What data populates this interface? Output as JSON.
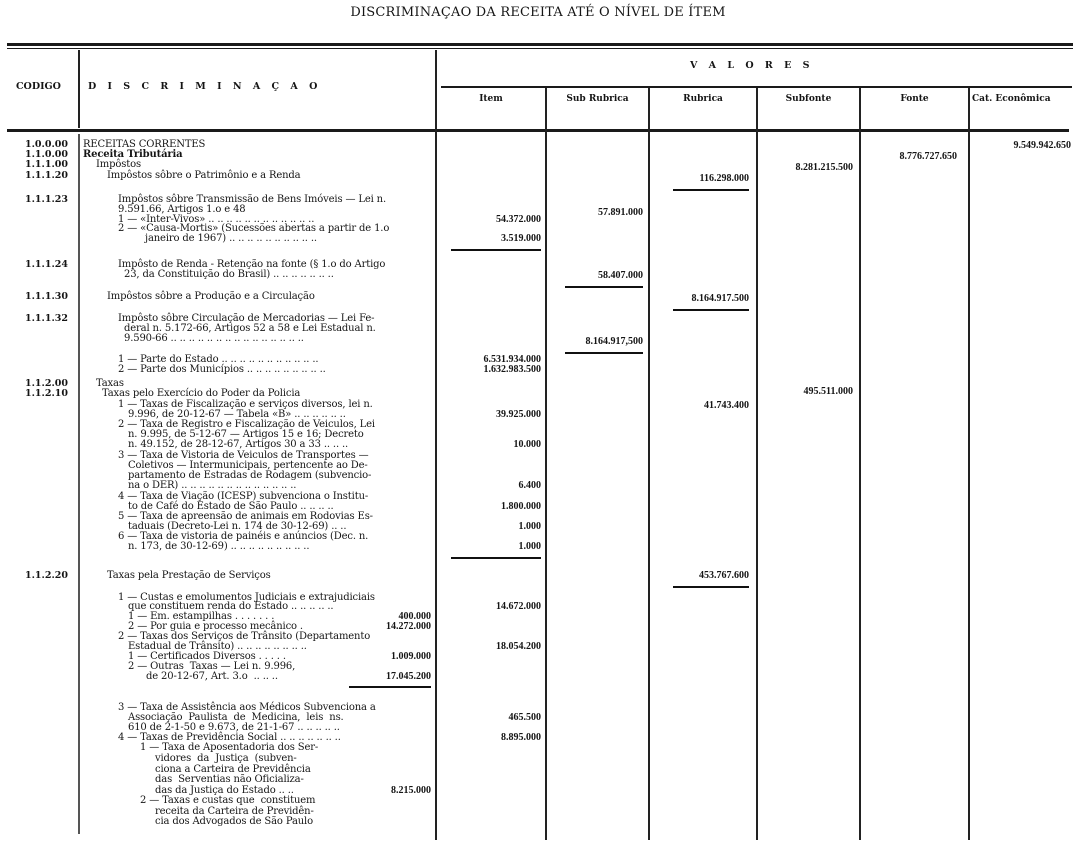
{
  "title": "DISCRIMINAÇAO DA RECEITA ATÉ O NÍVEL DE ÍTEM",
  "header": {
    "codigo": "CODIGO",
    "discriminacao": "D I S C R I M I N A Ç A O",
    "valores": "V A L O R E S",
    "columns": [
      "Item",
      "Sub Rubrica",
      "Rubrica",
      "Subfonte",
      "Fonte",
      "Cat. Econômica"
    ]
  },
  "lines": [
    {
      "code": "1.0.0.00",
      "text": "RECEITAS CORRENTES"
    },
    {
      "code": "1.1.0.00",
      "text": "Receita Tributária"
    },
    {
      "code": "1.1.1.00",
      "text": "Impôstos"
    },
    {
      "code": "1.1.1.20",
      "text": "Impôstos sôbre o Patrimônio e a Renda"
    },
    {
      "code": "1.1.1.23",
      "text": "Impôstos sôbre Transmissão de Bens Imóveis — Lei n."
    },
    {
      "text": "9.591.66, Artigos 1.o e 48"
    },
    {
      "text": "1 — «Inter-Vivos» .. .. .. .. .. .. .. .. .. .. .. .."
    },
    {
      "text": "2 — «Causa-Mortis» (Sucessões abertas a partir de 1.o"
    },
    {
      "text": "janeiro de 1967) .. .. .. .. .. .. .. .. .. .."
    },
    {
      "code": "1.1.1.24",
      "text": "Impôsto de Renda - Retenção na fonte (§ 1.o do Artigo"
    },
    {
      "text": "23, da Constituição do Brasil) .. .. .. .. .. .. .."
    },
    {
      "code": "1.1.1.30",
      "text": "Impôstos sôbre a Produção e a Circulação"
    },
    {
      "code": "1.1.1.32",
      "text": "Impôsto sôbre Circulação de Mercadorias — Lei Fe-"
    },
    {
      "text": "deral n. 5.172-66, Artigos 52 a 58 e Lei Estadual n."
    },
    {
      "text": "9.590-66 .. .. .. .. .. .. .. .. .. .. .. .. .. .. .."
    },
    {
      "text": "1 — Parte do Estado .. .. .. .. .. .. .. .. .. .. .."
    },
    {
      "text": "2 — Parte dos Municípios .. .. .. .. .. .. .. .. .."
    },
    {
      "code": "1.1.2.00",
      "text": "Taxas"
    },
    {
      "code": "1.1.2.10",
      "text": "Taxas pelo Exercício do Poder da Policia"
    },
    {
      "text": "1 — Taxas de Fiscalização e serviços diversos, lei n."
    },
    {
      "text": "9.996, de 20-12-67 — Tabela «B» .. .. .. .. .. .."
    },
    {
      "text": "2 — Taxa de Registro e Fiscalização de Veiculos, Lei"
    },
    {
      "text": "n. 9.995, de 5-12-67 — Artigos 15 e 16; Decreto"
    },
    {
      "text": "n. 49.152, de 28-12-67, Artigos 30 a 33 .. .. .."
    },
    {
      "text": "3 — Taxa de Vistoria de Veiculos de Transportes —"
    },
    {
      "text": "Coletivos — Intermunicipais, pertencente ao De-"
    },
    {
      "text": "partamento de Estradas de Rodagem (subvencio-"
    },
    {
      "text": "na o DER) .. .. .. .. .. .. .. .. .. .. .. .. .."
    },
    {
      "text": "4 — Taxa de Viação (ICESP) subvenciona o Institu-"
    },
    {
      "text": "to de Café do Estado de São Paulo .. .. .. .."
    },
    {
      "text": "5 — Taxa de apreensão de animais em Rodovias Es-"
    },
    {
      "text": "taduais (Decreto-Lei n. 174 de 30-12-69) .. .."
    },
    {
      "text": "6 — Taxa de vistoria de painéis e anúncios (Dec. n."
    },
    {
      "text": "n. 173, de 30-12-69) .. .. .. .. .. .. .. .. .."
    },
    {
      "code": "1.1.2.20",
      "text": "Taxas pela Prestação de Serviços"
    },
    {
      "text": "1 — Custas e emolumentos Judiciais e extrajudiciais"
    },
    {
      "text": "que constituem renda do Estado .. .. .. .. .."
    },
    {
      "text": "1 — Em. estampilhas . . . . . . .",
      "amount": "400.000"
    },
    {
      "text": "2 — Por guia e processo mecânico .",
      "amount": "14.272.000"
    },
    {
      "text": "2 — Taxas dos Serviços de Trânsito (Departamento"
    },
    {
      "text": "Estadual de Trânsito) .. .. .. .. .. .. .. .."
    },
    {
      "text": "1 — Certificados Diversos . . . . .",
      "amount": "1.009.000"
    },
    {
      "text": "2 — Outras  Taxas — Lei n. 9.996,"
    },
    {
      "text": "de 20-12-67, Art. 3.o  .. .. ..",
      "amount": "17.045.200"
    },
    {
      "text": "3 — Taxa de Assistência aos Médicos Subvenciona a"
    },
    {
      "text": "Associação  Paulista  de  Medicina,  leis  ns."
    },
    {
      "text": "610 de 2-1-50 e 9.673, de 21-1-67 .. .. .. .. .."
    },
    {
      "text": "4 — Taxas de Previdência Social .. .. .. .. .. .. .."
    },
    {
      "text": "1 — Taxa de Aposentadoria dos Ser-"
    },
    {
      "text": "vidores  da  Justiça  (subven-"
    },
    {
      "text": "ciona a Carteira de Previdência"
    },
    {
      "text": "das  Serventias não Oficializa-"
    },
    {
      "text": "das da Justiça do Estado .. ..",
      "amount": "8.215.000"
    },
    {
      "text": "2 — Taxas e custas que  constituem"
    },
    {
      "text": "receita da Carteira de Previdên-"
    },
    {
      "text": "cia dos Advogados de São Paulo"
    }
  ],
  "values": [
    {
      "column": "Cat. Econômica",
      "value": "9.549.942.650"
    },
    {
      "column": "Fonte",
      "value": "8.776.727.650"
    },
    {
      "column": "Subfonte",
      "value": "8.281.215.500"
    },
    {
      "column": "Rubrica",
      "value": "116.298.000"
    },
    {
      "column": "Sub Rubrica",
      "value": "57.891.000"
    },
    {
      "column": "Item",
      "value": "54.372.000"
    },
    {
      "column": "Item",
      "value": "3.519.000"
    },
    {
      "column": "Sub Rubrica",
      "value": "58.407.000"
    },
    {
      "column": "Rubrica",
      "value": "8.164.917.500"
    },
    {
      "column": "Sub Rubrica",
      "value": "8.164.917,500"
    },
    {
      "column": "Item",
      "value": "6.531.934.000"
    },
    {
      "column": "Item",
      "value": "1.632.983.500"
    },
    {
      "column": "Subfonte",
      "value": "495.511.000"
    },
    {
      "column": "Rubrica",
      "value": "41.743.400"
    },
    {
      "column": "Item",
      "value": "39.925.000"
    },
    {
      "column": "Item",
      "value": "10.000"
    },
    {
      "column": "Item",
      "value": "6.400"
    },
    {
      "column": "Item",
      "value": "1.800.000"
    },
    {
      "column": "Item",
      "value": "1.000"
    },
    {
      "column": "Item",
      "value": "1.000"
    },
    {
      "column": "Rubrica",
      "value": "453.767.600"
    },
    {
      "column": "Item",
      "value": "14.672.000"
    },
    {
      "column": "Item",
      "value": "18.054.200"
    },
    {
      "column": "Item",
      "value": "465.500"
    },
    {
      "column": "Item",
      "value": "8.895.000"
    }
  ]
}
